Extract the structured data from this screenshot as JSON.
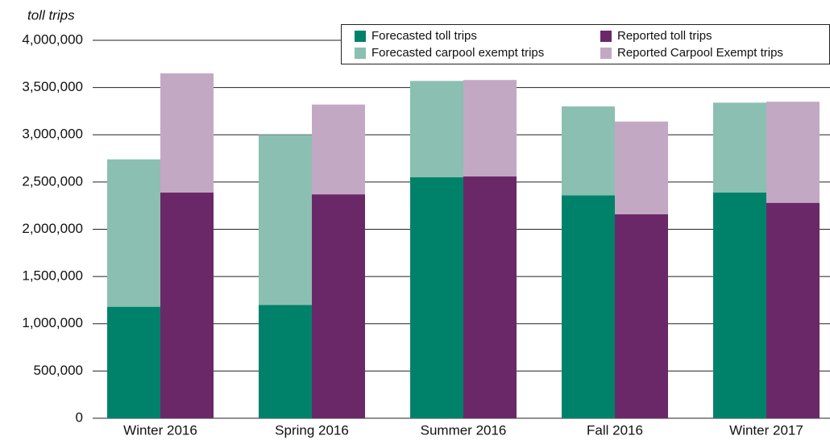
{
  "chart_data": {
    "type": "bar",
    "y_label": "toll trips",
    "categories": [
      "Winter 2016",
      "Spring 2016",
      "Summer 2016",
      "Fall 2016",
      "Winter 2017"
    ],
    "series": [
      {
        "name": "Forecasted toll trips",
        "color": "#00826a",
        "values": [
          1180000,
          1200000,
          2550000,
          2360000,
          2390000
        ]
      },
      {
        "name": "Forecasted carpool exempt trips",
        "color": "#8bbfb1",
        "values": [
          1560000,
          1800000,
          1020000,
          940000,
          950000
        ]
      },
      {
        "name": "Reported toll trips",
        "color": "#6b2869",
        "values": [
          2390000,
          2370000,
          2560000,
          2160000,
          2280000
        ]
      },
      {
        "name": "Reported Carpool Exempt trips",
        "color": "#c3a8c4",
        "values": [
          1260000,
          950000,
          1020000,
          980000,
          1070000
        ]
      }
    ],
    "ylim": [
      0,
      4000000
    ],
    "yticks": [
      0,
      {
        "value": 500000,
        "label": "500,000"
      },
      {
        "value": 1000000,
        "label": "1,000,000"
      },
      {
        "value": 1500000,
        "label": "1,500,000"
      },
      {
        "value": 2000000,
        "label": "2,000,000"
      },
      {
        "value": 2500000,
        "label": "2,500,000"
      },
      {
        "value": 3000000,
        "label": "3,000,000"
      },
      {
        "value": 3500000,
        "label": "3,500,000"
      },
      {
        "value": 4000000,
        "label": "4,000,000"
      }
    ],
    "grid": true
  }
}
